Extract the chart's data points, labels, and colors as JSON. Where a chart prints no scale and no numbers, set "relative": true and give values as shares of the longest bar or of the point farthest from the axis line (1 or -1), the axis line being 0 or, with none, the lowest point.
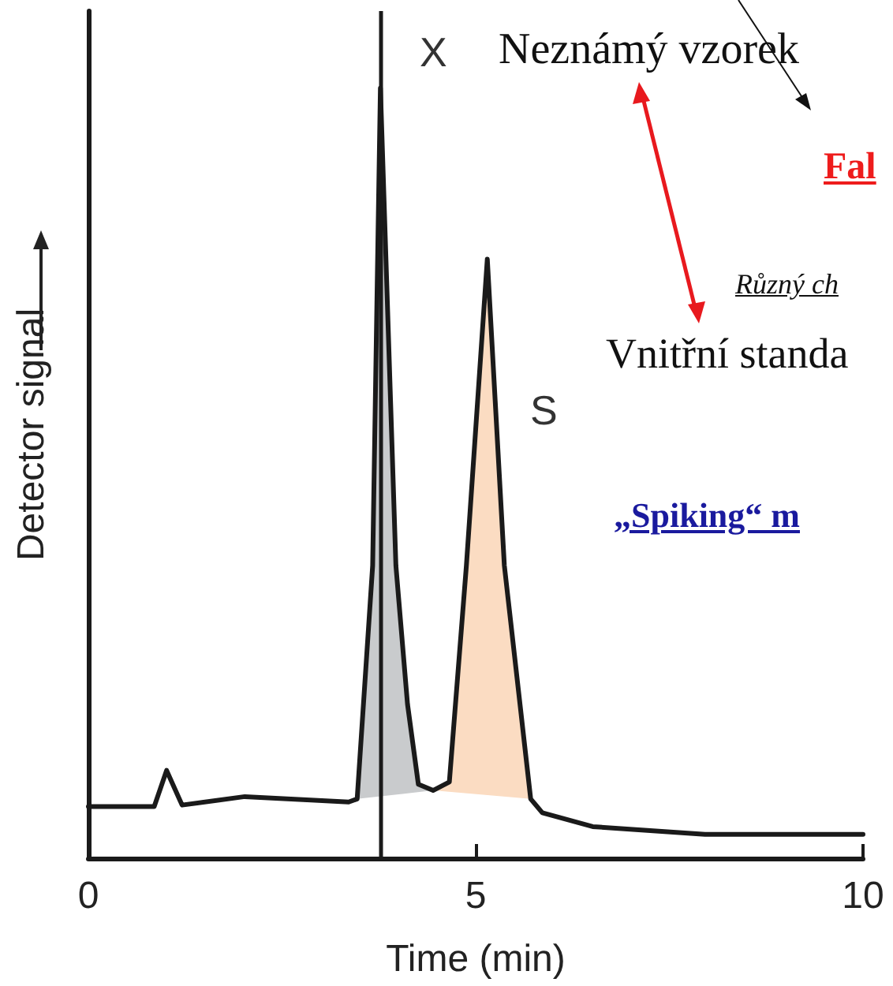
{
  "chart_data": {
    "type": "line",
    "relative": true,
    "xlabel": "Time (min)",
    "ylabel": "Detector signal",
    "xlim": [
      0,
      10
    ],
    "xticks": [
      0,
      5,
      10
    ],
    "grid": false,
    "marker": "none",
    "line_style": "solid",
    "series": [
      {
        "type": "area",
        "color": "#c9cbcd",
        "x": [
          3.47,
          3.67,
          3.77,
          3.97,
          4.12,
          4.26,
          4.45
        ],
        "values": [
          0.077,
          0.38,
          1,
          0.38,
          0.2,
          0.096,
          0.088
        ]
      },
      {
        "type": "area",
        "color": "#fbdcc2",
        "x": [
          4.45,
          4.66,
          4.88,
          5.15,
          5.37,
          5.71
        ],
        "values": [
          0.088,
          0.099,
          0.38,
          0.778,
          0.38,
          0.077
        ]
      },
      {
        "color": "#1a1a1a",
        "x": [
          0,
          0.85,
          1.01,
          1.21,
          2.02,
          3.36,
          3.47,
          3.67,
          3.77,
          3.97,
          4.12,
          4.26,
          4.45,
          4.66,
          4.88,
          5.15,
          5.37,
          5.71,
          5.86,
          6.51,
          7.96,
          10
        ],
        "values": [
          0.067,
          0.067,
          0.114,
          0.069,
          0.08,
          0.073,
          0.077,
          0.38,
          1,
          0.38,
          0.2,
          0.096,
          0.088,
          0.099,
          0.38,
          0.778,
          0.38,
          0.077,
          0.059,
          0.041,
          0.031,
          0.031
        ]
      }
    ],
    "ref_lines": [
      {
        "axis": "x",
        "value": 3.77,
        "color": "#1a1a1a"
      }
    ],
    "annotations": [
      "X",
      "S",
      "Neznámý vzorek",
      "Fal",
      "Různý ch",
      "Vnitřní standa",
      "„Spiking“ m"
    ]
  }
}
